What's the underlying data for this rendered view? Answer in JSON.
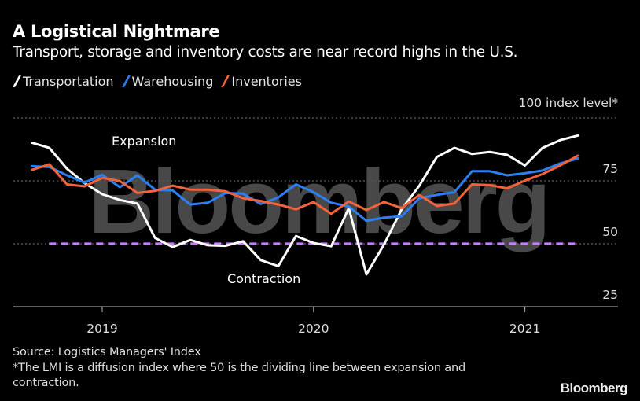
{
  "header": {
    "title": "A Logistical Nightmare",
    "subtitle": "Transport, storage and inventory costs are near record highs in the U.S."
  },
  "chart_data": {
    "type": "line",
    "title": "A Logistical Nightmare",
    "ylabel": "100 index level*",
    "ylim": [
      25,
      100
    ],
    "yticks": [
      100,
      75,
      50,
      25
    ],
    "ytick_labels": [
      "75",
      "50",
      "25"
    ],
    "xticks": [
      "2019",
      "2020",
      "2021"
    ],
    "grid": true,
    "legend_position": "top-left",
    "x": [
      "2018-09",
      "2018-10",
      "2018-11",
      "2018-12",
      "2019-01",
      "2019-02",
      "2019-03",
      "2019-04",
      "2019-05",
      "2019-06",
      "2019-07",
      "2019-08",
      "2019-09",
      "2019-10",
      "2019-11",
      "2019-12",
      "2020-01",
      "2020-02",
      "2020-03",
      "2020-04",
      "2020-05",
      "2020-06",
      "2020-07",
      "2020-08",
      "2020-09",
      "2020-10",
      "2020-11",
      "2020-12",
      "2021-01",
      "2021-02",
      "2021-03",
      "2021-04"
    ],
    "series": [
      {
        "name": "Transportation",
        "color": "#ffffff",
        "values": [
          90.2,
          88.1,
          79.8,
          74.1,
          69.7,
          67.4,
          66.0,
          52.3,
          48.7,
          51.5,
          49.4,
          49.2,
          51.0,
          43.5,
          41.1,
          53.1,
          50.3,
          49.0,
          64.2,
          37.8,
          49.7,
          63.7,
          73.0,
          84.5,
          88.1,
          85.7,
          86.5,
          85.3,
          81.1,
          88.1,
          91.2,
          93.0
        ]
      },
      {
        "name": "Warehousing",
        "color": "#2b7ff0",
        "values": [
          80.8,
          80.5,
          77.2,
          74.3,
          77.4,
          72.5,
          77.2,
          71.5,
          71.2,
          65.6,
          66.3,
          70.2,
          69.9,
          65.8,
          68.4,
          73.6,
          70.5,
          66.3,
          64.8,
          59.1,
          60.4,
          60.9,
          68.1,
          69.4,
          70.5,
          78.8,
          78.8,
          77.2,
          78.0,
          79.1,
          81.9,
          83.9
        ]
      },
      {
        "name": "Inventories",
        "color": "#f4623a",
        "values": [
          79.3,
          81.6,
          73.6,
          72.8,
          76.2,
          74.9,
          70.2,
          71.0,
          73.1,
          71.5,
          71.5,
          70.8,
          68.1,
          67.0,
          65.6,
          63.7,
          66.6,
          61.9,
          66.8,
          63.4,
          66.6,
          64.2,
          69.4,
          65.0,
          66.0,
          73.6,
          73.3,
          72.0,
          75.1,
          77.7,
          81.1,
          85.0
        ]
      }
    ],
    "reference_line": {
      "value": 50,
      "color": "#c77dff",
      "style": "dashed"
    },
    "annotations": [
      "Expansion",
      "Contraction"
    ],
    "watermark": "Bloomberg"
  },
  "footer": {
    "source": "Source: Logistics Managers' Index",
    "note_line1": "*The LMI is a diffusion index where 50 is the dividing line between expansion and",
    "note_line2": "contraction.",
    "brand": "Bloomberg"
  }
}
